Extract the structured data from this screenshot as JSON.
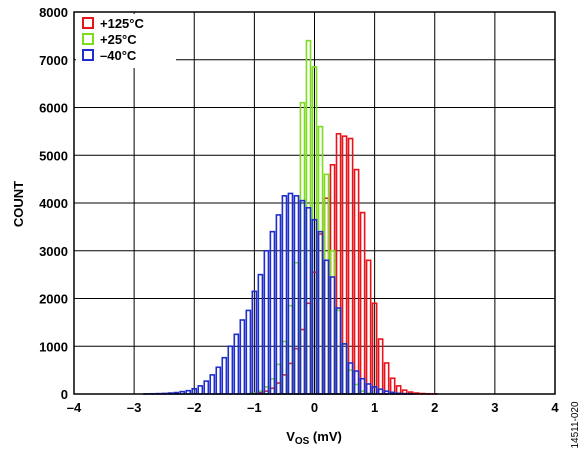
{
  "chart_data": {
    "type": "bar",
    "title": "",
    "xlabel_main": "V",
    "xlabel_sub": "OS",
    "xlabel_unit": " (mV)",
    "ylabel": "COUNT",
    "xlim": [
      -4,
      4
    ],
    "ylim": [
      0,
      8000
    ],
    "x_ticks": [
      "–4",
      "–3",
      "–2",
      "–1",
      "0",
      "1",
      "2",
      "3",
      "4"
    ],
    "x_tick_values": [
      -4,
      -3,
      -2,
      -1,
      0,
      1,
      2,
      3,
      4
    ],
    "y_ticks": [
      "0",
      "1000",
      "2000",
      "3000",
      "4000",
      "5000",
      "6000",
      "7000",
      "8000"
    ],
    "y_tick_values": [
      0,
      1000,
      2000,
      3000,
      4000,
      5000,
      6000,
      7000,
      8000
    ],
    "grid": true,
    "legend_position": "top-left",
    "bin_width": 0.1,
    "series": [
      {
        "name": "+125°C",
        "color": "#e8141c",
        "bins_x": [
          -1.1,
          -1.0,
          -0.9,
          -0.8,
          -0.7,
          -0.6,
          -0.5,
          -0.4,
          -0.3,
          -0.2,
          -0.1,
          0.0,
          0.1,
          0.2,
          0.3,
          0.4,
          0.5,
          0.6,
          0.7,
          0.8,
          0.9,
          1.0,
          1.1,
          1.2,
          1.3,
          1.4,
          1.5,
          1.6,
          1.7,
          1.8,
          1.9,
          2.0
        ],
        "values": [
          5,
          10,
          25,
          60,
          120,
          230,
          400,
          640,
          950,
          1350,
          1900,
          2550,
          3350,
          4100,
          4800,
          5450,
          5400,
          5350,
          4700,
          3800,
          2800,
          1900,
          1150,
          650,
          330,
          170,
          80,
          40,
          20,
          10,
          5,
          3
        ]
      },
      {
        "name": "+25°C",
        "color": "#7ddc1f",
        "bins_x": [
          -1.1,
          -1.0,
          -0.9,
          -0.8,
          -0.7,
          -0.6,
          -0.5,
          -0.4,
          -0.3,
          -0.2,
          -0.1,
          0.0,
          0.1,
          0.2,
          0.3,
          0.4,
          0.5,
          0.6,
          0.7,
          0.8,
          0.9
        ],
        "values": [
          5,
          20,
          60,
          150,
          320,
          620,
          1100,
          1850,
          2750,
          6100,
          7400,
          6850,
          5600,
          4600,
          3000,
          1750,
          1050,
          500,
          200,
          60,
          15
        ]
      },
      {
        "name": "–40°C",
        "color": "#1f2dcc",
        "bins_x": [
          -2.8,
          -2.7,
          -2.6,
          -2.5,
          -2.4,
          -2.3,
          -2.2,
          -2.1,
          -2.0,
          -1.9,
          -1.8,
          -1.7,
          -1.6,
          -1.5,
          -1.4,
          -1.3,
          -1.2,
          -1.1,
          -1.0,
          -0.9,
          -0.8,
          -0.7,
          -0.6,
          -0.5,
          -0.4,
          -0.3,
          -0.2,
          -0.1,
          0.0,
          0.1,
          0.2,
          0.3,
          0.4,
          0.5,
          0.6,
          0.7,
          0.8,
          0.9,
          1.0,
          1.1,
          1.2,
          1.3,
          1.4,
          1.5,
          1.6
        ],
        "values": [
          3,
          5,
          8,
          12,
          20,
          30,
          50,
          70,
          110,
          170,
          270,
          400,
          560,
          760,
          1000,
          1250,
          1550,
          1750,
          2150,
          2500,
          3000,
          3400,
          3750,
          4150,
          4200,
          4150,
          4050,
          3900,
          3650,
          3400,
          2800,
          2450,
          1800,
          1050,
          650,
          480,
          320,
          210,
          150,
          100,
          60,
          35,
          15,
          8,
          3
        ]
      }
    ]
  },
  "figure_code": "14511-020"
}
